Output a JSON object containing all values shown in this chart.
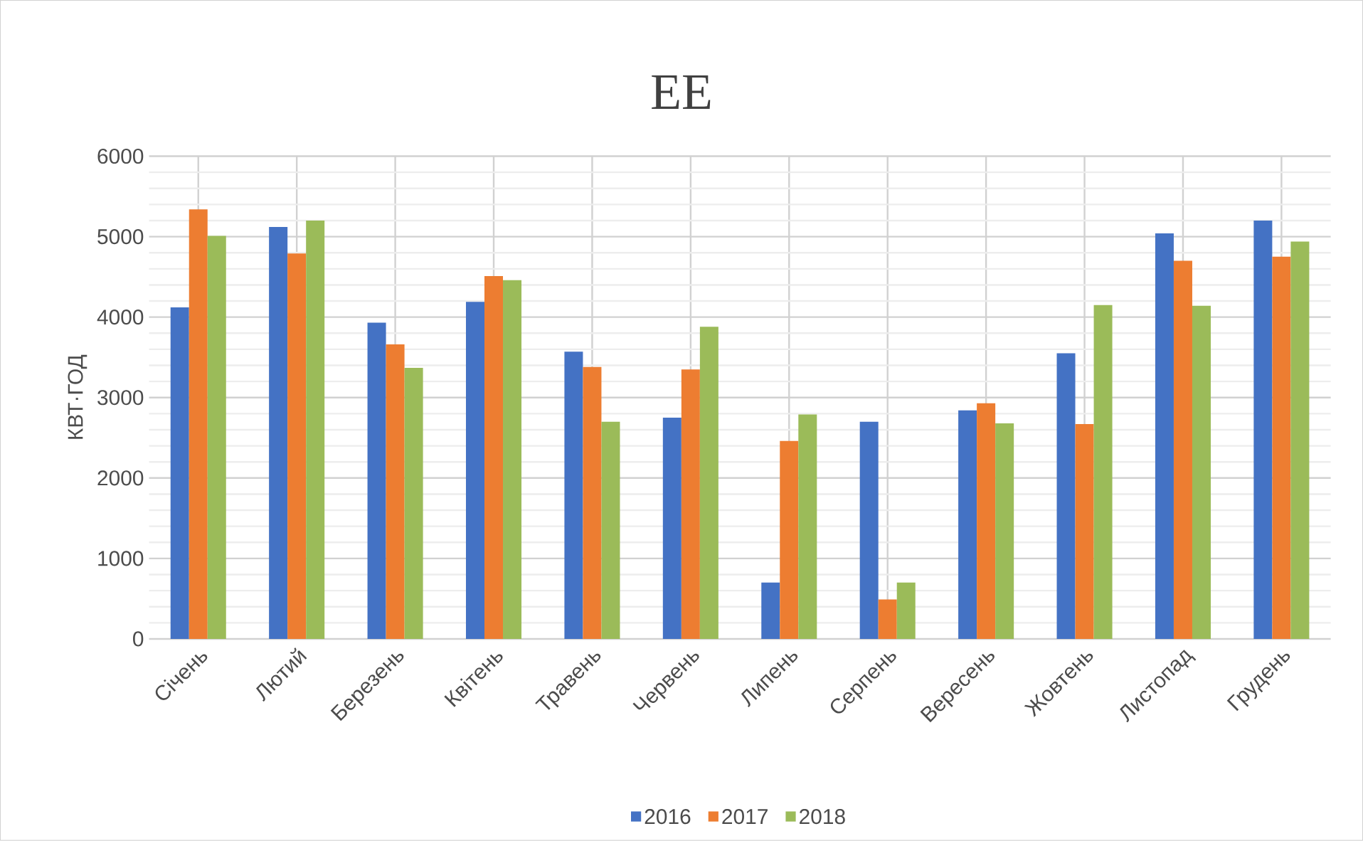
{
  "chart_data": {
    "type": "bar",
    "title": "ЕЕ",
    "ylabel": "КВТ·ГОД",
    "categories": [
      "Січень",
      "Лютий",
      "Березень",
      "Квітень",
      "Травень",
      "Червень",
      "Липень",
      "Серпень",
      "Вересень",
      "Жовтень",
      "Листопад",
      "Грудень"
    ],
    "series": [
      {
        "name": "2016",
        "color": "#4472c4",
        "values": [
          4120,
          5120,
          3930,
          4190,
          3570,
          2750,
          700,
          2700,
          2840,
          3550,
          5040,
          5200
        ]
      },
      {
        "name": "2017",
        "color": "#ed7d31",
        "values": [
          5340,
          4790,
          3660,
          4510,
          3380,
          3350,
          2460,
          490,
          2930,
          2670,
          4700,
          4750
        ]
      },
      {
        "name": "2018",
        "color": "#9bbb59",
        "values": [
          5010,
          5200,
          3370,
          4460,
          2700,
          3880,
          2790,
          700,
          2680,
          4150,
          4140,
          4940
        ]
      }
    ],
    "ylim": [
      0,
      6000
    ],
    "yticks": [
      0,
      1000,
      2000,
      3000,
      4000,
      5000,
      6000
    ],
    "grid": true,
    "legend": "bottom"
  }
}
